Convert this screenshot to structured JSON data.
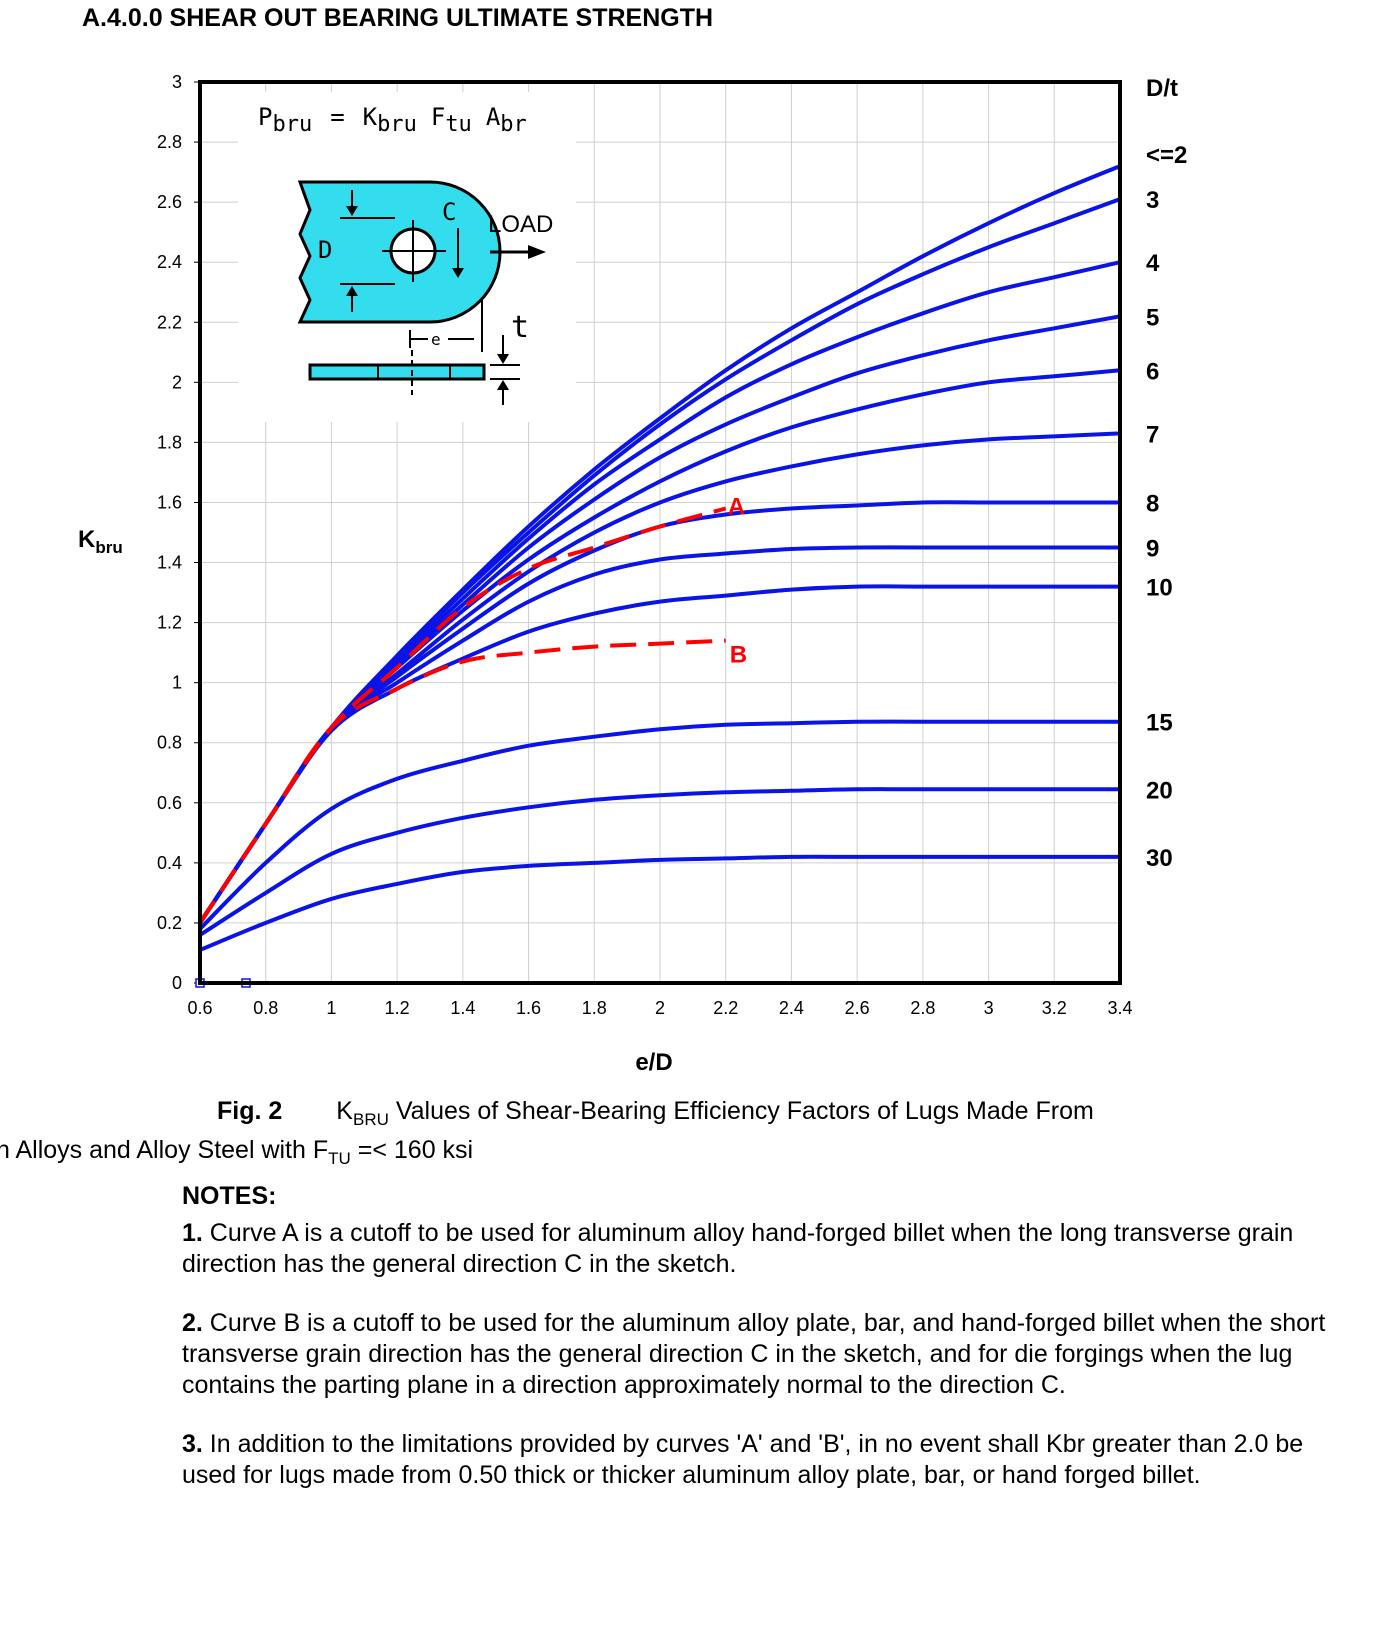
{
  "page": {
    "title": "A.4.0.0 SHEAR OUT BEARING ULTIMATE STRENGTH"
  },
  "figure": {
    "formula_parts": {
      "p": "P",
      "p_sub": "bru",
      "eq": "=",
      "k": "K",
      "k_sub": "bru",
      "f": "F",
      "f_sub": "tu",
      "a": "A",
      "a_sub": "br"
    },
    "sketch_labels": {
      "d": "D",
      "c": "C",
      "load": "LOAD",
      "e": "e",
      "t": "t"
    },
    "caption_fig": "Fig. 2",
    "caption_k": "K",
    "caption_k_sub": "BRU",
    "caption_rest": " Values of Shear-Bearing Efficiency Factors of Lugs Made From",
    "caption_line2_a": "n Alloys and Alloy Steel with F",
    "caption_line2_sub": "TU",
    "caption_line2_b": " =< 160 ksi"
  },
  "notes": {
    "heading": "NOTES:",
    "items": [
      {
        "num": "1.",
        "text": " Curve A is a cutoff to be used for aluminum alloy hand-forged billet when the long transverse grain direction has the general direction C in the sketch."
      },
      {
        "num": "2.",
        "text": " Curve B is a cutoff to be used for the aluminum alloy plate, bar, and hand-forged billet when the short transverse grain direction has the general direction C in the sketch, and for die forgings when the lug contains the parting plane in a direction approximately normal to the direction C."
      },
      {
        "num": "3.",
        "text": " In addition to the limitations provided by curves 'A' and 'B', in no event shall Kbr greater than 2.0 be used for lugs made from 0.50 thick or thicker aluminum alloy plate, bar, or hand forged billet."
      }
    ]
  },
  "chart_data": {
    "type": "line",
    "title": "",
    "xlabel": "e/D",
    "ylabel": "K",
    "ylabel_sub": "bru",
    "legend_title": "D/t",
    "xlim": [
      0.6,
      3.4
    ],
    "ylim": [
      0,
      3
    ],
    "x_ticks": [
      "0.6",
      "0.8",
      "1",
      "1.2",
      "1.4",
      "1.6",
      "1.8",
      "2",
      "2.2",
      "2.4",
      "2.6",
      "2.8",
      "3",
      "3.2",
      "3.4"
    ],
    "y_ticks": [
      "0",
      "0.2",
      "0.4",
      "0.6",
      "0.8",
      "1",
      "1.2",
      "1.4",
      "1.6",
      "1.8",
      "2",
      "2.2",
      "2.4",
      "2.6",
      "2.8",
      "3"
    ],
    "grid": true,
    "colors": {
      "curves": "#0a14e6",
      "cutoff": "#ff0000",
      "baseline": "#33cc33",
      "sketch": "#33ddee"
    },
    "series": [
      {
        "name": "<=2",
        "x": [
          0.6,
          0.8,
          1.0,
          1.2,
          1.4,
          1.6,
          1.8,
          2.0,
          2.2,
          2.4,
          2.6,
          2.8,
          3.0,
          3.2,
          3.4
        ],
        "y": [
          0.2,
          0.53,
          0.85,
          1.09,
          1.31,
          1.52,
          1.71,
          1.88,
          2.04,
          2.18,
          2.3,
          2.42,
          2.53,
          2.63,
          2.72
        ]
      },
      {
        "name": "3",
        "x": [
          0.6,
          0.8,
          1.0,
          1.2,
          1.4,
          1.6,
          1.8,
          2.0,
          2.2,
          2.4,
          2.6,
          2.8,
          3.0,
          3.2,
          3.4
        ],
        "y": [
          0.2,
          0.53,
          0.85,
          1.08,
          1.3,
          1.5,
          1.69,
          1.86,
          2.01,
          2.14,
          2.26,
          2.36,
          2.45,
          2.53,
          2.61
        ]
      },
      {
        "name": "4",
        "x": [
          0.6,
          0.8,
          1.0,
          1.2,
          1.4,
          1.6,
          1.8,
          2.0,
          2.2,
          2.4,
          2.6,
          2.8,
          3.0,
          3.2,
          3.4
        ],
        "y": [
          0.2,
          0.53,
          0.85,
          1.07,
          1.28,
          1.48,
          1.66,
          1.81,
          1.95,
          2.06,
          2.15,
          2.23,
          2.3,
          2.35,
          2.4
        ]
      },
      {
        "name": "5",
        "x": [
          0.6,
          0.8,
          1.0,
          1.2,
          1.4,
          1.6,
          1.8,
          2.0,
          2.2,
          2.4,
          2.6,
          2.8,
          3.0,
          3.2,
          3.4
        ],
        "y": [
          0.2,
          0.53,
          0.85,
          1.06,
          1.26,
          1.45,
          1.61,
          1.75,
          1.86,
          1.95,
          2.03,
          2.09,
          2.14,
          2.18,
          2.22
        ]
      },
      {
        "name": "6",
        "x": [
          0.6,
          0.8,
          1.0,
          1.2,
          1.4,
          1.6,
          1.8,
          2.0,
          2.2,
          2.4,
          2.6,
          2.8,
          3.0,
          3.2,
          3.4
        ],
        "y": [
          0.2,
          0.53,
          0.85,
          1.05,
          1.24,
          1.41,
          1.55,
          1.67,
          1.77,
          1.85,
          1.91,
          1.96,
          2.0,
          2.02,
          2.04
        ]
      },
      {
        "name": "7",
        "x": [
          0.6,
          0.8,
          1.0,
          1.2,
          1.4,
          1.6,
          1.8,
          2.0,
          2.2,
          2.4,
          2.6,
          2.8,
          3.0,
          3.2,
          3.4
        ],
        "y": [
          0.2,
          0.53,
          0.85,
          1.03,
          1.21,
          1.37,
          1.5,
          1.6,
          1.67,
          1.72,
          1.76,
          1.79,
          1.81,
          1.82,
          1.83
        ]
      },
      {
        "name": "8",
        "x": [
          0.6,
          0.8,
          1.0,
          1.2,
          1.4,
          1.6,
          1.8,
          2.0,
          2.2,
          2.4,
          2.6,
          2.8,
          3.0,
          3.2,
          3.4
        ],
        "y": [
          0.2,
          0.53,
          0.85,
          1.02,
          1.18,
          1.33,
          1.44,
          1.52,
          1.56,
          1.58,
          1.59,
          1.6,
          1.6,
          1.6,
          1.6
        ]
      },
      {
        "name": "9",
        "x": [
          0.6,
          0.8,
          1.0,
          1.2,
          1.4,
          1.6,
          1.8,
          2.0,
          2.2,
          2.4,
          2.6,
          2.8,
          3.0,
          3.2,
          3.4
        ],
        "y": [
          0.2,
          0.53,
          0.85,
          1.0,
          1.14,
          1.27,
          1.36,
          1.41,
          1.43,
          1.445,
          1.45,
          1.45,
          1.45,
          1.45,
          1.45
        ]
      },
      {
        "name": "10",
        "x": [
          0.6,
          0.8,
          1.0,
          1.2,
          1.4,
          1.6,
          1.8,
          2.0,
          2.2,
          2.4,
          2.6,
          2.8,
          3.0,
          3.2,
          3.4
        ],
        "y": [
          0.2,
          0.53,
          0.84,
          0.98,
          1.08,
          1.17,
          1.23,
          1.27,
          1.29,
          1.31,
          1.32,
          1.32,
          1.32,
          1.32,
          1.32
        ]
      },
      {
        "name": "15",
        "x": [
          0.6,
          0.8,
          1.0,
          1.2,
          1.4,
          1.6,
          1.8,
          2.0,
          2.2,
          2.4,
          2.6,
          2.8,
          3.0,
          3.2,
          3.4
        ],
        "y": [
          0.18,
          0.4,
          0.58,
          0.68,
          0.74,
          0.79,
          0.82,
          0.845,
          0.86,
          0.865,
          0.87,
          0.87,
          0.87,
          0.87,
          0.87
        ]
      },
      {
        "name": "20",
        "x": [
          0.6,
          0.8,
          1.0,
          1.2,
          1.4,
          1.6,
          1.8,
          2.0,
          2.2,
          2.4,
          2.6,
          2.8,
          3.0,
          3.2,
          3.4
        ],
        "y": [
          0.16,
          0.3,
          0.43,
          0.5,
          0.55,
          0.585,
          0.61,
          0.625,
          0.635,
          0.64,
          0.645,
          0.645,
          0.645,
          0.645,
          0.645
        ]
      },
      {
        "name": "30",
        "x": [
          0.6,
          0.8,
          1.0,
          1.2,
          1.4,
          1.6,
          1.8,
          2.0,
          2.2,
          2.4,
          2.6,
          2.8,
          3.0,
          3.2,
          3.4
        ],
        "y": [
          0.11,
          0.2,
          0.28,
          0.33,
          0.37,
          0.39,
          0.4,
          0.41,
          0.415,
          0.42,
          0.42,
          0.42,
          0.42,
          0.42,
          0.42
        ]
      }
    ],
    "cutoffs": [
      {
        "name": "A",
        "x": [
          0.6,
          0.8,
          1.0,
          1.2,
          1.4,
          1.6,
          1.8,
          2.0,
          2.2
        ],
        "y": [
          0.2,
          0.53,
          0.85,
          1.05,
          1.25,
          1.38,
          1.45,
          1.52,
          1.58
        ]
      },
      {
        "name": "B",
        "x": [
          0.6,
          0.8,
          1.0,
          1.2,
          1.4,
          1.6,
          1.8,
          2.0,
          2.2
        ],
        "y": [
          0.2,
          0.53,
          0.85,
          0.98,
          1.07,
          1.1,
          1.12,
          1.13,
          1.14
        ]
      }
    ],
    "baseline_y": 0
  }
}
